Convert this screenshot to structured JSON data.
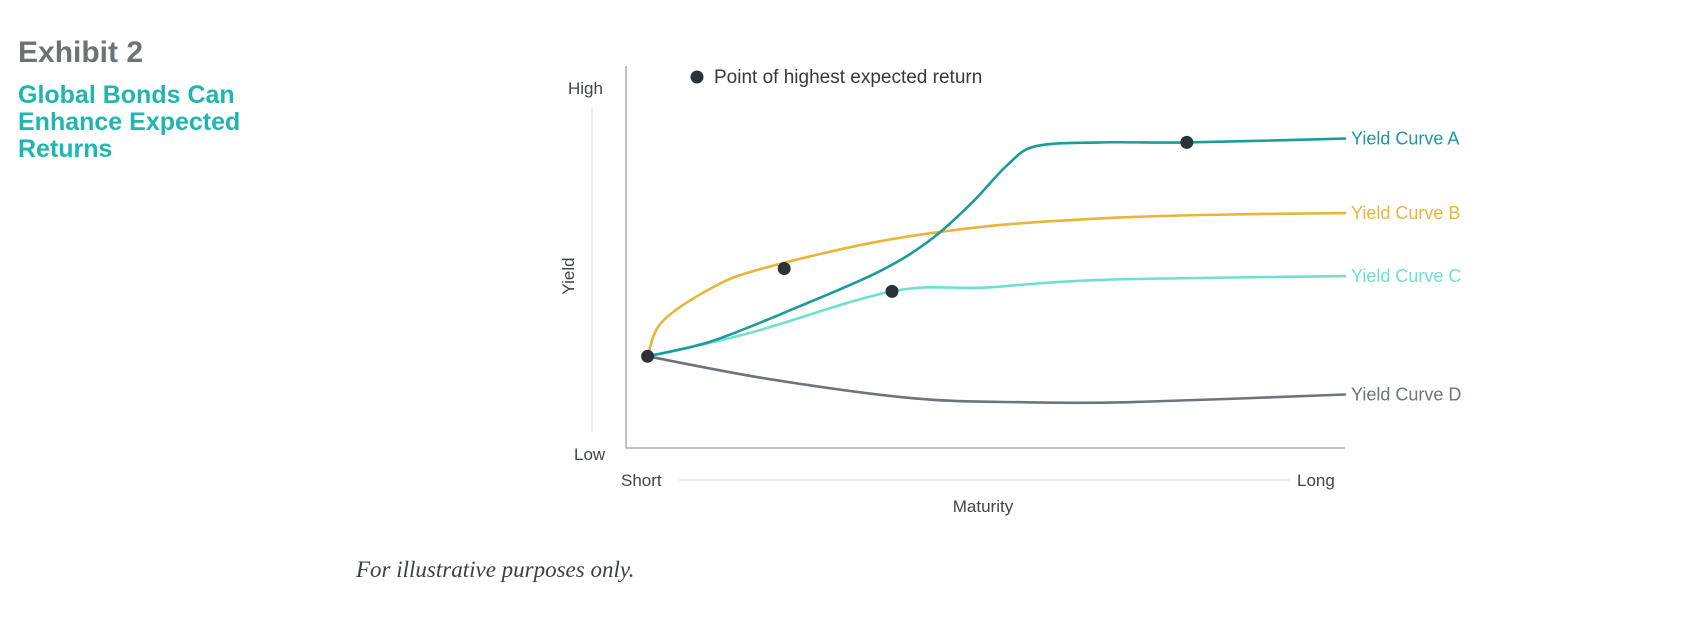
{
  "header": {
    "exhibit": "Exhibit 2",
    "title": "Global Bonds Can Enhance Expected Returns"
  },
  "footnote": "For illustrative purposes only.",
  "chart_data": {
    "type": "line",
    "xlabel": "Maturity",
    "ylabel": "Yield",
    "x_tick_labels": [
      "Short",
      "Long"
    ],
    "y_tick_labels": [
      "Low",
      "High"
    ],
    "xlim": [
      0,
      1
    ],
    "ylim": [
      0,
      1
    ],
    "grid": false,
    "legend": {
      "position": "top-left",
      "entries": [
        {
          "label": "Point of highest expected return",
          "color": "#2b3338"
        }
      ]
    },
    "series": [
      {
        "name": "Yield Curve A",
        "color": "#1c9a9c",
        "points": [
          [
            0.03,
            0.24
          ],
          [
            0.12,
            0.28
          ],
          [
            0.24,
            0.37
          ],
          [
            0.35,
            0.46
          ],
          [
            0.42,
            0.54
          ],
          [
            0.48,
            0.64
          ],
          [
            0.53,
            0.74
          ],
          [
            0.57,
            0.79
          ],
          [
            0.66,
            0.8
          ],
          [
            0.78,
            0.8
          ],
          [
            1.0,
            0.81
          ]
        ],
        "highest_return_point": [
          0.78,
          0.8
        ]
      },
      {
        "name": "Yield Curve B",
        "color": "#e8b53a",
        "points": [
          [
            0.03,
            0.24
          ],
          [
            0.05,
            0.33
          ],
          [
            0.12,
            0.42
          ],
          [
            0.19,
            0.47
          ],
          [
            0.35,
            0.54
          ],
          [
            0.5,
            0.58
          ],
          [
            0.65,
            0.6
          ],
          [
            0.8,
            0.61
          ],
          [
            1.0,
            0.615
          ]
        ],
        "highest_return_point": [
          0.22,
          0.47
        ]
      },
      {
        "name": "Yield Curve C",
        "color": "#6fe0cb",
        "points": [
          [
            0.03,
            0.24
          ],
          [
            0.17,
            0.3
          ],
          [
            0.37,
            0.41
          ],
          [
            0.5,
            0.42
          ],
          [
            0.66,
            0.44
          ],
          [
            1.0,
            0.45
          ]
        ],
        "highest_return_point": [
          0.37,
          0.41
        ]
      },
      {
        "name": "Yield Curve D",
        "color": "#6d747a",
        "points": [
          [
            0.03,
            0.24
          ],
          [
            0.2,
            0.18
          ],
          [
            0.4,
            0.13
          ],
          [
            0.55,
            0.12
          ],
          [
            0.7,
            0.12
          ],
          [
            1.0,
            0.14
          ]
        ]
      }
    ]
  }
}
